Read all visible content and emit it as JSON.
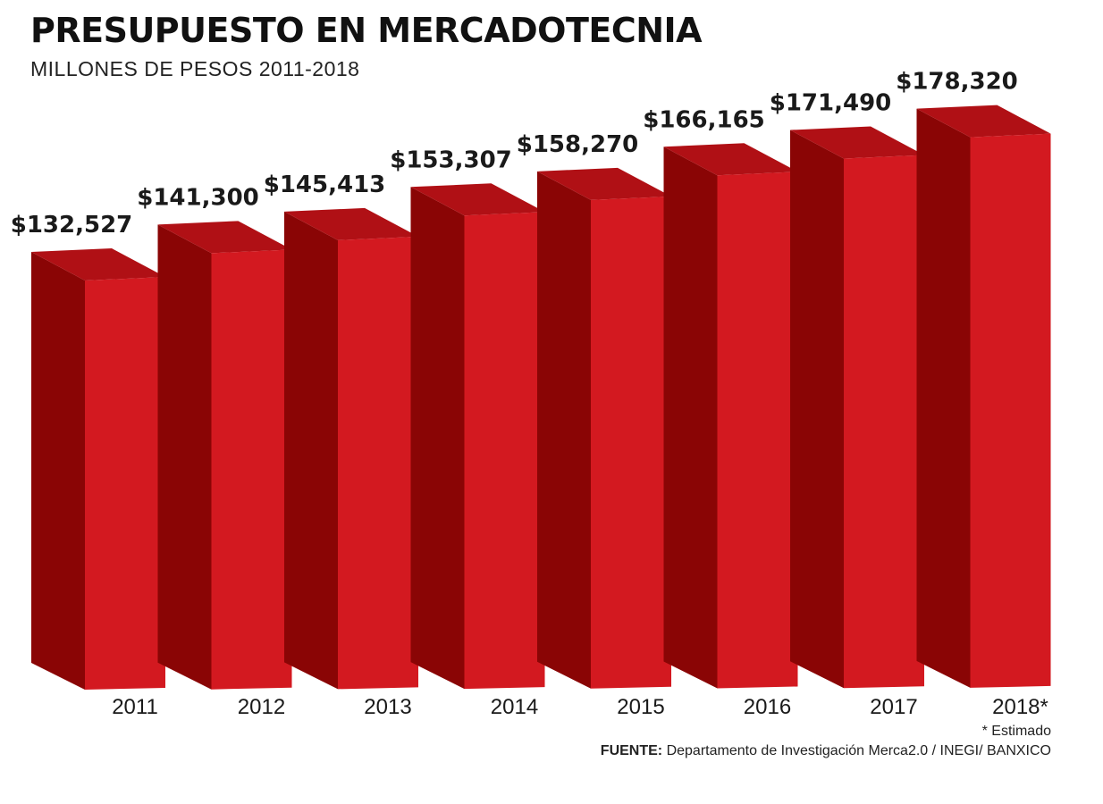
{
  "header": {
    "title": "PRESUPUESTO EN MERCADOTECNIA",
    "subtitle": "MILLONES DE PESOS 2011-2018"
  },
  "footer": {
    "note": "* Estimado",
    "source_label": "FUENTE:",
    "source_text": "Departamento de Investigación Merca2.0 / INEGI/ BANXICO"
  },
  "colors": {
    "bar_front": "#d31920",
    "bar_side": "#8a0505",
    "bar_top": "#b01015"
  },
  "chart_data": {
    "type": "bar",
    "style": "3d",
    "categories": [
      "2011",
      "2012",
      "2013",
      "2014",
      "2015",
      "2016",
      "2017",
      "2018*"
    ],
    "values": [
      132527,
      141300,
      145413,
      153307,
      158270,
      166165,
      171490,
      178320
    ],
    "data_labels": [
      "$132,527",
      "$141,300",
      "$145,413",
      "$153,307",
      "$158,270",
      "$166,165",
      "$171,490",
      "$178,320"
    ],
    "title": "PRESUPUESTO EN MERCADOTECNIA",
    "subtitle": "MILLONES DE PESOS 2011-2018",
    "xlabel": "",
    "ylabel": "",
    "grid": false,
    "legend": "none"
  }
}
